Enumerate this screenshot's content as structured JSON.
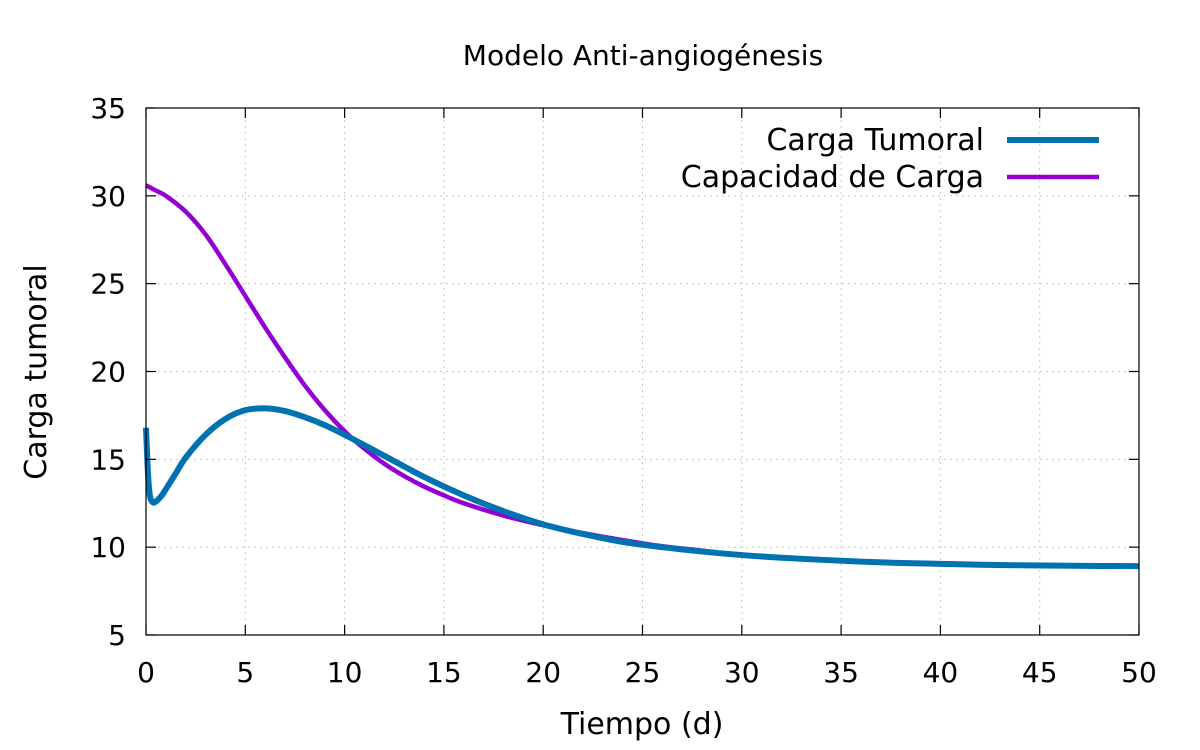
{
  "chart_data": {
    "type": "line",
    "title": "Modelo Anti-angiogénesis",
    "xlabel": "Tiempo (d)",
    "ylabel": "Carga tumoral",
    "xlim": [
      0,
      50
    ],
    "ylim": [
      5,
      35
    ],
    "xticks": [
      0,
      5,
      10,
      15,
      20,
      25,
      30,
      35,
      40,
      45,
      50
    ],
    "yticks": [
      5,
      10,
      15,
      20,
      25,
      30,
      35
    ],
    "grid": true,
    "legend_position": "top-right",
    "series": [
      {
        "name": "Carga Tumoral",
        "color": "#0072b2",
        "x": [
          0,
          0.1,
          0.2,
          0.35,
          0.5,
          0.8,
          1,
          1.5,
          2,
          3,
          4,
          5,
          6,
          7,
          8,
          9,
          10,
          12,
          14,
          16,
          18,
          20,
          22,
          24,
          26,
          28,
          30,
          32,
          34,
          36,
          38,
          40,
          42,
          44,
          46,
          48,
          50
        ],
        "y": [
          16.8,
          14.2,
          12.9,
          12.55,
          12.6,
          12.95,
          13.3,
          14.2,
          15.1,
          16.4,
          17.3,
          17.8,
          17.9,
          17.75,
          17.4,
          16.95,
          16.4,
          15.2,
          14.0,
          12.95,
          12.05,
          11.3,
          10.75,
          10.3,
          10.0,
          9.75,
          9.55,
          9.4,
          9.28,
          9.18,
          9.1,
          9.05,
          9.0,
          8.97,
          8.95,
          8.93,
          8.92
        ]
      },
      {
        "name": "Capacidad de Carga",
        "color": "#9400d3",
        "x": [
          0,
          0.5,
          1,
          2,
          3,
          4,
          5,
          6,
          7,
          8,
          9,
          10,
          11,
          12,
          13,
          14,
          15,
          16,
          18,
          20,
          22,
          24,
          26,
          28,
          30,
          32,
          34,
          36,
          38,
          40,
          42,
          44,
          46,
          48,
          50
        ],
        "y": [
          30.6,
          30.3,
          30.0,
          29.1,
          27.8,
          26.1,
          24.3,
          22.5,
          20.8,
          19.2,
          17.8,
          16.6,
          15.6,
          14.75,
          14.05,
          13.45,
          12.95,
          12.5,
          11.8,
          11.25,
          10.8,
          10.4,
          10.05,
          9.8,
          9.55,
          9.4,
          9.28,
          9.18,
          9.1,
          9.05,
          9.0,
          8.97,
          8.95,
          8.93,
          8.92
        ]
      }
    ]
  }
}
